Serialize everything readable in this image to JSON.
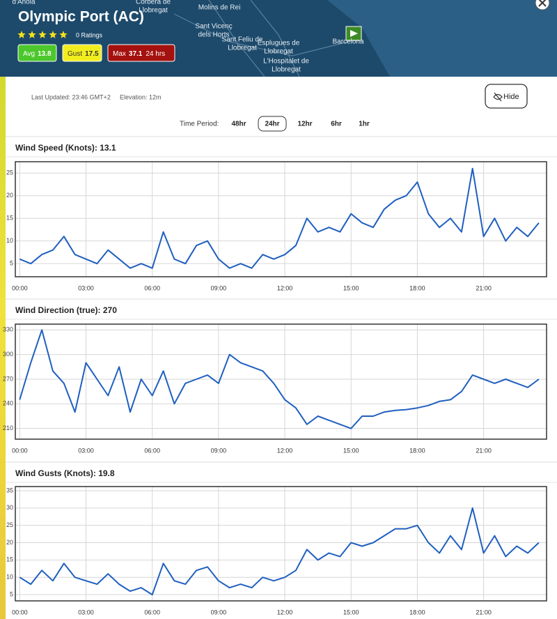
{
  "map_labels": [
    {
      "lines": [
        "d'Anoia"
      ]
    },
    {
      "lines": [
        "Corbera de",
        "Llobregat"
      ]
    },
    {
      "lines": [
        "Molins de Rei"
      ]
    },
    {
      "lines": [
        "Sant Vicenç",
        "dels Horts"
      ]
    },
    {
      "lines": [
        "Sant Feliu de",
        "Llobregat"
      ]
    },
    {
      "lines": [
        "Esplugues de",
        "Llobregat"
      ]
    },
    {
      "lines": [
        "L'Hospitalet de",
        "Llobregat"
      ]
    },
    {
      "lines": [
        "Barcelona"
      ]
    }
  ],
  "header": {
    "title": "Olympic Port (AC)",
    "ratings": "0 Ratings",
    "badges": [
      {
        "label": "Avg",
        "value": "13.8",
        "color": "#4cc72c",
        "text_color": "#ffffff"
      },
      {
        "label": "Gust",
        "value": "17.5",
        "color": "#f2ee1e",
        "text_color": "#333333"
      },
      {
        "label": "Max",
        "value": "37.1",
        "extra": "24 hrs",
        "color": "#a4110e",
        "text_color": "#ffffff"
      }
    ]
  },
  "info": {
    "last_updated": "Last Updated: 23:46 GMT+2",
    "elevation": "Elevation: 12m",
    "hide_button": "Hide"
  },
  "time_period": {
    "label": "Time Period:",
    "options": [
      "48hr",
      "24hr",
      "12hr",
      "6hr",
      "1hr"
    ],
    "selected": 1
  },
  "chart_data": [
    {
      "type": "line",
      "title": "Wind Speed (Knots): 13.1",
      "color": "#1f5fbf",
      "grid": true,
      "xlim": [
        -0.2,
        23.85
      ],
      "xticks": [
        {
          "value": 0,
          "label": "00:00"
        },
        {
          "value": 3,
          "label": "03:00"
        },
        {
          "value": 6,
          "label": "06:00"
        },
        {
          "value": 9,
          "label": "09:00"
        },
        {
          "value": 12,
          "label": "12:00"
        },
        {
          "value": 15,
          "label": "15:00"
        },
        {
          "value": 18,
          "label": "18:00"
        },
        {
          "value": 21,
          "label": "21:00"
        }
      ],
      "ylim": [
        2.1,
        27.5
      ],
      "yticks": [
        5,
        10,
        15,
        20,
        25
      ],
      "x": [
        0,
        0.5,
        1,
        1.5,
        2,
        2.5,
        3,
        3.5,
        4,
        4.5,
        5,
        5.5,
        6,
        6.5,
        7,
        7.5,
        8,
        8.5,
        9,
        9.5,
        10,
        10.5,
        11,
        11.5,
        12,
        12.5,
        13,
        13.5,
        14,
        14.5,
        15,
        15.5,
        16,
        16.5,
        17,
        17.5,
        18,
        18.5,
        19,
        19.5,
        20,
        20.5,
        21,
        21.5,
        22,
        22.5,
        23,
        23.5
      ],
      "values": [
        6,
        5,
        7,
        8,
        11,
        7,
        6,
        5,
        8,
        6,
        4,
        5,
        4,
        12,
        6,
        5,
        9,
        10,
        6,
        4,
        5,
        4,
        7,
        6,
        7,
        9,
        15,
        12,
        13,
        12,
        16,
        14,
        13,
        17,
        19,
        20,
        23,
        16,
        13,
        15,
        12,
        26,
        11,
        15,
        10,
        13,
        11,
        14
      ]
    },
    {
      "type": "line",
      "title": "Wind Direction (true): 270",
      "color": "#1f5fbf",
      "grid": true,
      "xlim": [
        -0.2,
        23.85
      ],
      "xticks": [
        {
          "value": 0,
          "label": "00:00"
        },
        {
          "value": 3,
          "label": "03:00"
        },
        {
          "value": 6,
          "label": "06:00"
        },
        {
          "value": 9,
          "label": "09:00"
        },
        {
          "value": 12,
          "label": "12:00"
        },
        {
          "value": 15,
          "label": "15:00"
        },
        {
          "value": 18,
          "label": "18:00"
        },
        {
          "value": 21,
          "label": "21:00"
        }
      ],
      "ylim": [
        197,
        337
      ],
      "yticks": [
        210,
        240,
        270,
        300,
        330
      ],
      "x": [
        0,
        0.5,
        1,
        1.5,
        2,
        2.5,
        3,
        3.5,
        4,
        4.5,
        5,
        5.5,
        6,
        6.5,
        7,
        7.5,
        8,
        8.5,
        9,
        9.5,
        10,
        10.5,
        11,
        11.5,
        12,
        12.5,
        13,
        13.5,
        14,
        14.5,
        15,
        15.5,
        16,
        16.5,
        17,
        17.5,
        18,
        18.5,
        19,
        19.5,
        20,
        20.5,
        21,
        21.5,
        22,
        22.5,
        23,
        23.5
      ],
      "values": [
        245,
        290,
        330,
        280,
        265,
        230,
        290,
        270,
        250,
        285,
        230,
        270,
        250,
        280,
        240,
        265,
        270,
        275,
        265,
        300,
        290,
        285,
        280,
        265,
        245,
        235,
        215,
        225,
        220,
        215,
        210,
        225,
        225,
        230,
        232,
        233,
        235,
        238,
        243,
        245,
        255,
        275,
        270,
        265,
        270,
        265,
        260,
        270
      ]
    },
    {
      "type": "line",
      "title": "Wind Gusts (Knots): 19.8",
      "color": "#1f5fbf",
      "grid": true,
      "xlim": [
        -0.2,
        23.85
      ],
      "xticks": [
        {
          "value": 0,
          "label": "00:00"
        },
        {
          "value": 3,
          "label": "03:00"
        },
        {
          "value": 6,
          "label": "06:00"
        },
        {
          "value": 9,
          "label": "09:00"
        },
        {
          "value": 12,
          "label": "12:00"
        },
        {
          "value": 15,
          "label": "15:00"
        },
        {
          "value": 18,
          "label": "18:00"
        },
        {
          "value": 21,
          "label": "21:00"
        }
      ],
      "ylim": [
        3.2,
        36.2
      ],
      "yticks": [
        5,
        10,
        15,
        20,
        25,
        30,
        35
      ],
      "x": [
        0,
        0.5,
        1,
        1.5,
        2,
        2.5,
        3,
        3.5,
        4,
        4.5,
        5,
        5.5,
        6,
        6.5,
        7,
        7.5,
        8,
        8.5,
        9,
        9.5,
        10,
        10.5,
        11,
        11.5,
        12,
        12.5,
        13,
        13.5,
        14,
        14.5,
        15,
        15.5,
        16,
        16.5,
        17,
        17.5,
        18,
        18.5,
        19,
        19.5,
        20,
        20.5,
        21,
        21.5,
        22,
        22.5,
        23,
        23.5
      ],
      "values": [
        10,
        8,
        12,
        9,
        14,
        10,
        9,
        8,
        11,
        8,
        6,
        7,
        5,
        14,
        9,
        8,
        12,
        13,
        9,
        7,
        8,
        7,
        10,
        9,
        10,
        12,
        18,
        15,
        17,
        16,
        20,
        19,
        20,
        22,
        24,
        24,
        25,
        20,
        17,
        22,
        18,
        30,
        17,
        22,
        16,
        19,
        17,
        20
      ]
    }
  ]
}
